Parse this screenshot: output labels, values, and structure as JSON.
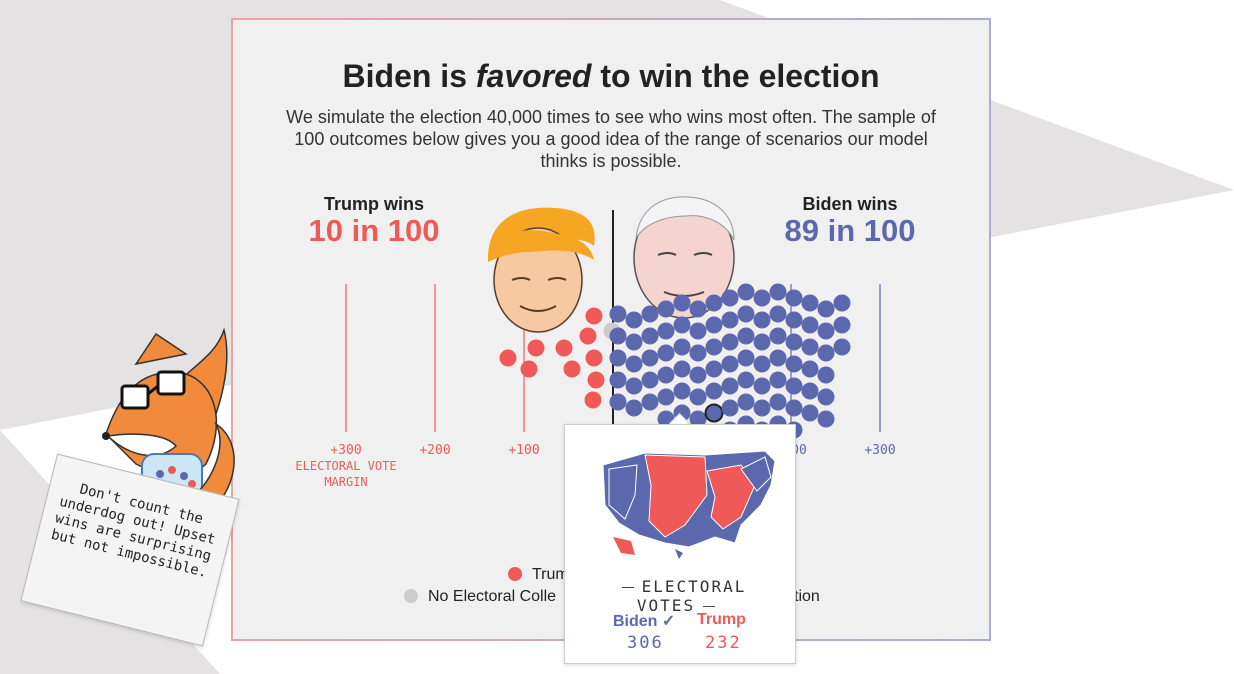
{
  "title_pre": "Biden is",
  "title_em": "favored",
  "title_post": "to win the election",
  "subtitle": "We simulate the election 40,000 times to see who wins most often. The sample of 100 outcomes below gives you a good idea of the range of scenarios our model thinks is possible.",
  "trump": {
    "label": "Trump wins",
    "odds": "10 in 100",
    "color": "#ef5a58"
  },
  "biden": {
    "label": "Biden wins",
    "odds": "89 in 100",
    "color": "#5b68ae"
  },
  "tie_color": "#cccccc",
  "chart_data": {
    "type": "scatter",
    "description": "Dot plot of 100 simulated outcomes by electoral vote margin",
    "outcome_counts": {
      "trump_wins": 10,
      "no_majority": 1,
      "biden_wins": 89
    },
    "x_ticks": [
      "+300",
      "+200",
      "+100",
      "+300"
    ],
    "x_ticks_trump": [
      "+300",
      "+200",
      "+100"
    ],
    "x_ticks_biden": [
      "00",
      "+300"
    ],
    "xlabel": "ELECTORAL VOTE MARGIN",
    "xlim": [
      -320,
      380
    ]
  },
  "legend": {
    "trump": "Trum",
    "tie": "No Electoral Colle",
    "tie_tail": "ction"
  },
  "tooltip": {
    "heading": "ELECTORAL VOTES",
    "biden_label": "Biden ✓",
    "biden_votes": "306",
    "trump_label": "Trump",
    "trump_votes": "232"
  },
  "note": "Don't count the underdog out! Upset wins are surprising but not impossible."
}
